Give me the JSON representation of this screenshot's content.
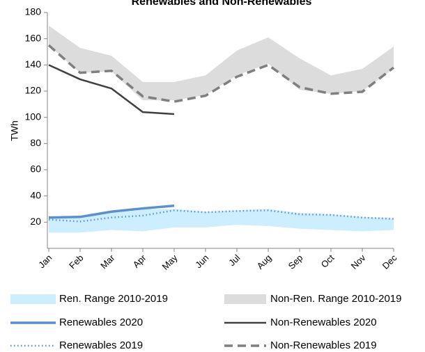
{
  "chart_data": {
    "type": "line",
    "title": "Renewables and Non-Renewables",
    "y_label": "TWh",
    "categories": [
      "Jan",
      "Feb",
      "Mar",
      "Apr",
      "May",
      "Jun",
      "Jul",
      "Aug",
      "Sep",
      "Oct",
      "Nov",
      "Dec"
    ],
    "ylim": [
      0,
      180
    ],
    "yticks": [
      20,
      40,
      60,
      80,
      100,
      120,
      140,
      160,
      180
    ],
    "grid": false,
    "series": [
      {
        "name": "Ren. Range 2010-2019",
        "color": "#cceeff",
        "style": "band",
        "low": [
          12,
          12,
          14,
          13,
          16,
          16,
          18,
          17,
          15,
          14,
          13,
          14
        ],
        "high": [
          23,
          24,
          27,
          30,
          30,
          28,
          29,
          30,
          27,
          26,
          24,
          23
        ]
      },
      {
        "name": "Non-Ren. Range 2010-2019",
        "color": "#dcdcdc",
        "style": "band",
        "low": [
          155,
          134,
          135,
          113,
          113,
          117,
          132,
          141,
          121,
          118,
          120,
          137
        ],
        "high": [
          170,
          153,
          147,
          127,
          127,
          132,
          151,
          161,
          145,
          132,
          137,
          154
        ]
      },
      {
        "name": "Renewables 2020",
        "color": "#5b8fd0",
        "style": "solid-thick",
        "values": [
          23.5,
          24,
          28,
          30.5,
          32.5,
          null,
          null,
          null,
          null,
          null,
          null,
          null
        ]
      },
      {
        "name": "Non-Renewables 2020",
        "color": "#404040",
        "style": "solid",
        "values": [
          140,
          129,
          122,
          104,
          102.5,
          null,
          null,
          null,
          null,
          null,
          null,
          null
        ]
      },
      {
        "name": "Renewables 2019",
        "color": "#5b8fd0",
        "style": "dotted",
        "values": [
          22,
          20.5,
          23.5,
          25,
          29,
          27.5,
          28.5,
          29,
          26,
          25.5,
          23.5,
          22.5
        ]
      },
      {
        "name": "Non-Renewables 2019",
        "color": "#7f7f7f",
        "style": "dashed",
        "values": [
          155,
          134,
          135.5,
          116,
          112,
          116.5,
          131,
          140,
          123,
          118,
          119.5,
          138
        ]
      }
    ]
  }
}
